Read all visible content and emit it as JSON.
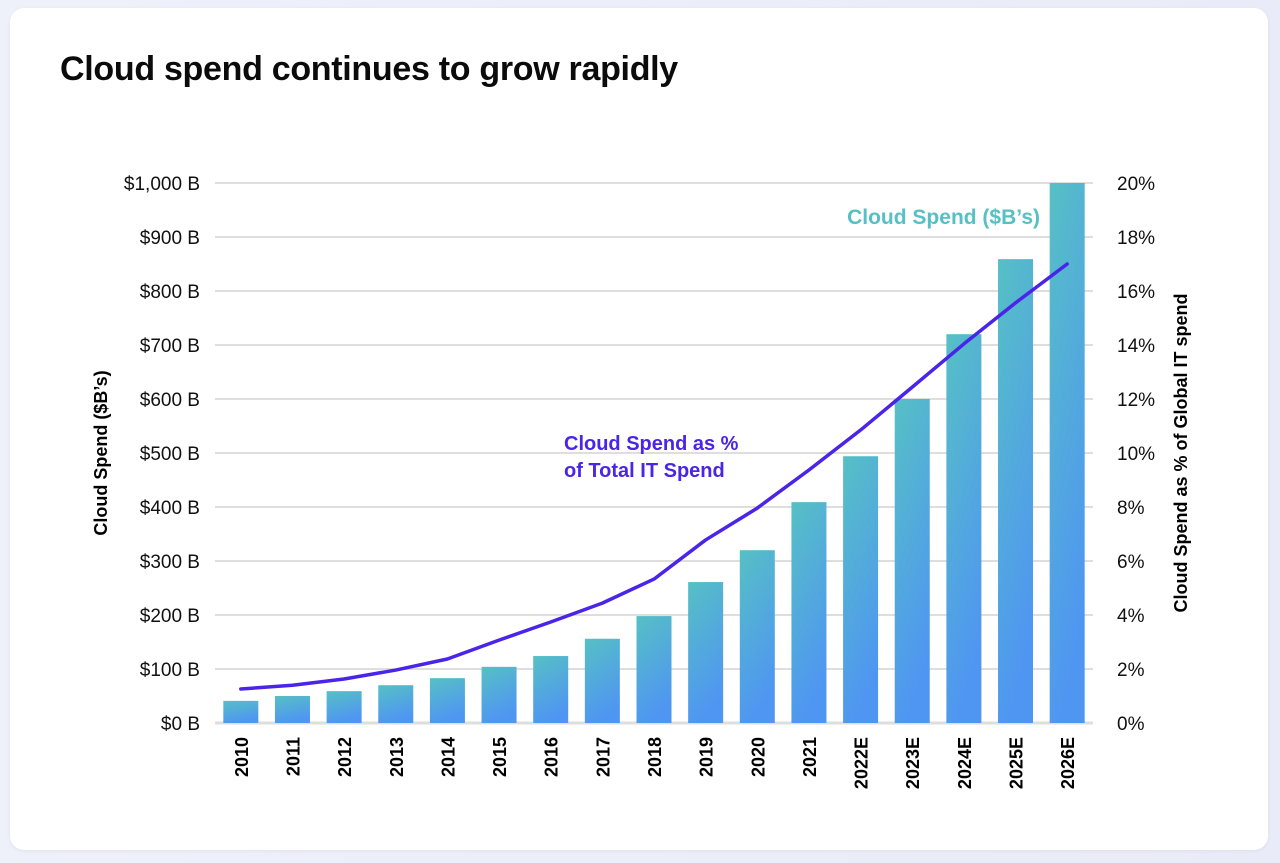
{
  "chart_data": {
    "type": "bar+line",
    "title": "Cloud spend continues to grow rapidly",
    "categories": [
      "2010",
      "2011",
      "2012",
      "2013",
      "2014",
      "2015",
      "2016",
      "2017",
      "2018",
      "2019",
      "2020",
      "2021",
      "2022E",
      "2023E",
      "2024E",
      "2025E",
      "2026E"
    ],
    "series": [
      {
        "name": "Cloud Spend ($B’s)",
        "type": "bar",
        "axis": "left",
        "color": "#56c0c4",
        "color_bottom": "#4f96f2",
        "values": [
          41,
          50,
          59,
          70,
          83,
          104,
          124,
          156,
          198,
          261,
          320,
          409,
          494,
          600,
          720,
          859,
          1000
        ]
      },
      {
        "name": "Cloud Spend as % of Total IT Spend",
        "name_lines": [
          "Cloud Spend as %",
          "of Total IT Spend"
        ],
        "type": "line",
        "axis": "right",
        "color": "#4a24e8",
        "values": [
          1.26,
          1.4,
          1.63,
          1.96,
          2.37,
          3.07,
          3.74,
          4.44,
          5.33,
          6.78,
          7.96,
          9.37,
          10.85,
          12.44,
          14.04,
          15.56,
          17.0
        ]
      }
    ],
    "ylabel": "Cloud Spend ($B’s)",
    "ylabel_right": "Cloud Spend as % of Global IT spend",
    "ylim": [
      0,
      1000
    ],
    "ylim_right": [
      0,
      20
    ],
    "yticks": [
      "$0 B",
      "$100 B",
      "$200 B",
      "$300 B",
      "$400 B",
      "$500 B",
      "$600 B",
      "$700 B",
      "$800 B",
      "$900 B",
      "$1,000 B"
    ],
    "yticks_right": [
      "0%",
      "2%",
      "4%",
      "6%",
      "8%",
      "10%",
      "12%",
      "14%",
      "16%",
      "18%",
      "20%"
    ],
    "grid": true,
    "gridline_color": "#dedede"
  }
}
